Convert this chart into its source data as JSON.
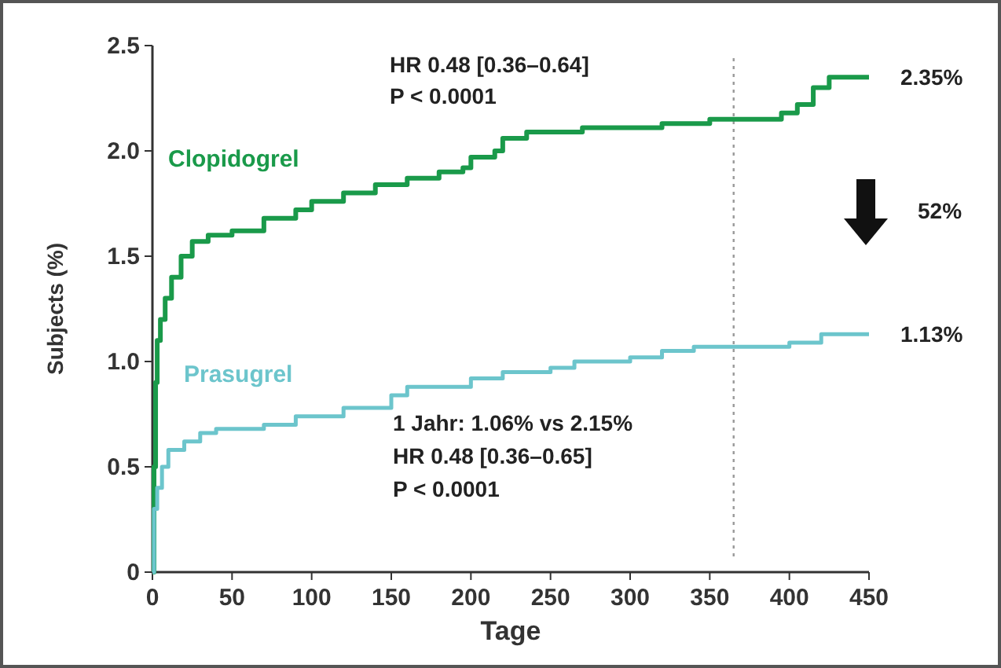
{
  "chart_data": {
    "type": "step",
    "xlabel": "Tage",
    "ylabel": "Subjects (%)",
    "xlim": [
      0,
      450
    ],
    "xticks": [
      0,
      50,
      100,
      150,
      200,
      250,
      300,
      350,
      400,
      450
    ],
    "ylim": [
      0,
      2.5
    ],
    "yticks": [
      0,
      0.5,
      {
        "value": 1,
        "label": "1.0"
      },
      1.5,
      {
        "value": 2,
        "label": "2.0"
      },
      2.5
    ],
    "grid": false,
    "marker": "none",
    "line_style": "solid",
    "series": [
      {
        "name": "Clopidogrel",
        "color": "#1a9a4a",
        "x": [
          0,
          1,
          2,
          3,
          5,
          8,
          12,
          18,
          25,
          35,
          50,
          70,
          90,
          100,
          120,
          140,
          160,
          180,
          195,
          200,
          215,
          220,
          235,
          270,
          320,
          350,
          395,
          405,
          415,
          425,
          450
        ],
        "values": [
          0,
          0.5,
          0.9,
          1.1,
          1.2,
          1.3,
          1.4,
          1.5,
          1.57,
          1.6,
          1.62,
          1.68,
          1.72,
          1.76,
          1.8,
          1.84,
          1.87,
          1.9,
          1.92,
          1.97,
          2.0,
          2.06,
          2.09,
          2.11,
          2.13,
          2.15,
          2.18,
          2.22,
          2.3,
          2.35,
          2.35
        ]
      },
      {
        "name": "Prasugrel",
        "color": "#6cc5cc",
        "x": [
          0,
          1,
          3,
          6,
          10,
          20,
          30,
          40,
          70,
          90,
          120,
          150,
          160,
          200,
          220,
          250,
          265,
          300,
          320,
          340,
          400,
          420,
          450
        ],
        "values": [
          0,
          0.3,
          0.4,
          0.5,
          0.58,
          0.62,
          0.66,
          0.68,
          0.7,
          0.74,
          0.78,
          0.84,
          0.88,
          0.92,
          0.95,
          0.97,
          1.0,
          1.02,
          1.05,
          1.07,
          1.09,
          1.13,
          1.13
        ]
      }
    ],
    "ref_lines": [
      {
        "axis": "x",
        "value": 365,
        "color": "#999999",
        "line_style": "dotted"
      }
    ],
    "annotations": [
      "HR 0.48 [0.36–0.64]",
      "P < 0.0001",
      "52%",
      "1 Jahr: 1.06% vs 2.15%",
      "HR 0.48 [0.36–0.65]",
      "P < 0.0001",
      {
        "text": "2.35%",
        "x": 450,
        "y": 2.35
      },
      {
        "text": "1.13%",
        "x": 450,
        "y": 1.13
      }
    ]
  }
}
